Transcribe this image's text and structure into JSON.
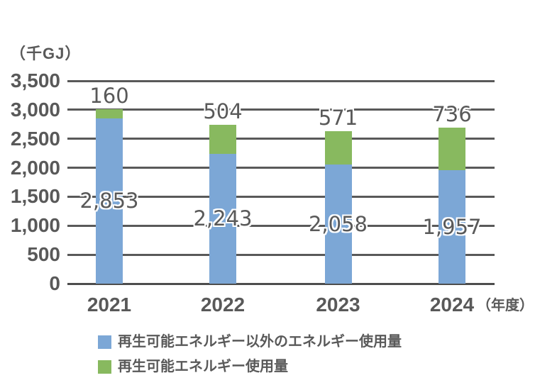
{
  "chart_data": {
    "type": "bar",
    "stacked": true,
    "unit_label": "（千GJ）",
    "x_axis_suffix": "（年度）",
    "categories": [
      "2021",
      "2022",
      "2023",
      "2024"
    ],
    "series": [
      {
        "name": "再生可能エネルギー以外のエネルギー使用量",
        "color": "#7CA7D6",
        "values": [
          2853,
          2243,
          2058,
          1957
        ],
        "display": [
          "2,853",
          "2,243",
          "2,058",
          "1,957"
        ],
        "label_position": "inside-center"
      },
      {
        "name": "再生可能エネルギー使用量",
        "color": "#88B95F",
        "values": [
          160,
          504,
          571,
          736
        ],
        "display": [
          "160",
          "504",
          "571",
          "736"
        ],
        "label_position": "outside-top"
      }
    ],
    "ylim": [
      0,
      3500
    ],
    "ytick_step": 500,
    "yticks": [
      "0",
      "500",
      "1,000",
      "1,500",
      "2,000",
      "2,500",
      "3,000",
      "3,500"
    ],
    "grid": true,
    "legend_position": "bottom-left"
  },
  "colors": {
    "background": "#FFFFFF",
    "grid": "#595959",
    "axis": "#4D4D4D",
    "text": "#595959",
    "blue_series": "#7CA7D6",
    "green_series": "#88B95F"
  }
}
